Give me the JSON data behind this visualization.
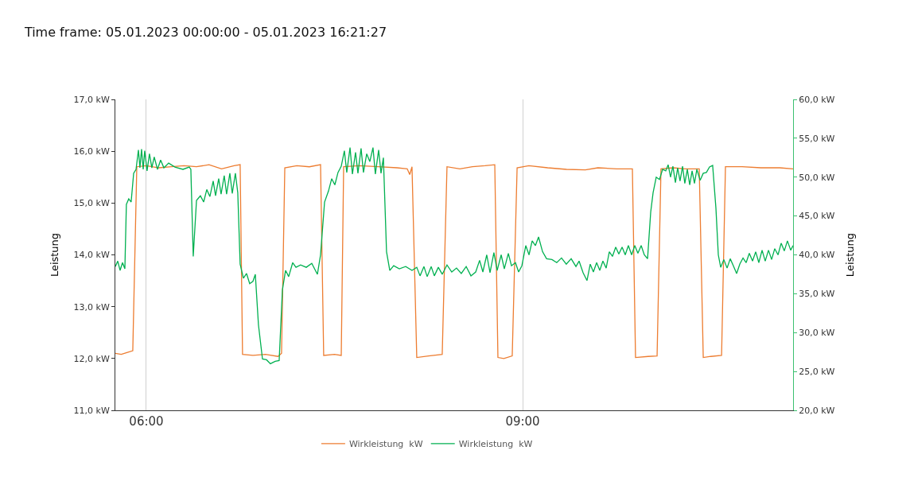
{
  "chart_data": {
    "type": "line",
    "title": "Time frame: 05.01.2023 00:00:00 - 05.01.2023 16:21:27",
    "ylabel": "Leistung",
    "y2label": "Leistung",
    "xlim": [
      5.753,
      11.156
    ],
    "xticks": [
      {
        "value": 6,
        "label": "06:00"
      },
      {
        "value": 9,
        "label": "09:00"
      }
    ],
    "ylim": [
      11,
      17
    ],
    "yticks": [
      {
        "value": 11,
        "label": "11,0 kW"
      },
      {
        "value": 12,
        "label": "12,0 kW"
      },
      {
        "value": 13,
        "label": "13,0 kW"
      },
      {
        "value": 14,
        "label": "14,0 kW"
      },
      {
        "value": 15,
        "label": "15,0 kW"
      },
      {
        "value": 16,
        "label": "16,0 kW"
      },
      {
        "value": 17,
        "label": "17,0 kW"
      }
    ],
    "y2lim": [
      20,
      60
    ],
    "y2ticks": [
      {
        "value": 20,
        "label": "20,0 kW"
      },
      {
        "value": 25,
        "label": "25,0 kW"
      },
      {
        "value": 30,
        "label": "30,0 kW"
      },
      {
        "value": 35,
        "label": "35,0 kW"
      },
      {
        "value": 40,
        "label": "40,0 kW"
      },
      {
        "value": 45,
        "label": "45,0 kW"
      },
      {
        "value": 50,
        "label": "50,0 kW"
      },
      {
        "value": 55,
        "label": "55,0 kW"
      },
      {
        "value": 60,
        "label": "60,0 kW"
      }
    ],
    "grid": "x",
    "legend": "bottom",
    "marker": "none",
    "line_style": "solid",
    "series": [
      {
        "name": "Wirkleistung  kW",
        "color": "#ed7d31",
        "x": [
          5.753,
          5.8,
          5.85,
          5.892,
          5.924,
          6.0,
          6.1,
          6.2,
          6.3,
          6.4,
          6.5,
          6.6,
          6.7,
          6.748,
          6.767,
          6.85,
          6.95,
          7.05,
          7.078,
          7.104,
          7.2,
          7.3,
          7.389,
          7.414,
          7.5,
          7.554,
          7.573,
          7.7,
          7.85,
          8.0,
          8.08,
          8.1,
          8.118,
          8.156,
          8.25,
          8.359,
          8.397,
          8.5,
          8.6,
          8.7,
          8.778,
          8.803,
          8.85,
          8.917,
          8.956,
          9.05,
          9.2,
          9.35,
          9.5,
          9.6,
          9.75,
          9.875,
          9.9,
          10.0,
          10.072,
          10.103,
          10.2,
          10.3,
          10.408,
          10.44,
          10.5,
          10.586,
          10.617,
          10.75,
          10.9,
          11.05,
          11.156
        ],
        "values": [
          12.1,
          12.08,
          12.12,
          12.15,
          15.7,
          15.72,
          15.68,
          15.7,
          15.72,
          15.7,
          15.74,
          15.66,
          15.72,
          15.74,
          12.08,
          12.06,
          12.08,
          12.04,
          12.1,
          15.68,
          15.72,
          15.7,
          15.74,
          12.06,
          12.08,
          12.06,
          15.7,
          15.72,
          15.7,
          15.68,
          15.66,
          15.55,
          15.7,
          12.02,
          12.05,
          12.08,
          15.7,
          15.66,
          15.7,
          15.72,
          15.74,
          12.02,
          12.0,
          12.05,
          15.68,
          15.72,
          15.68,
          15.65,
          15.64,
          15.68,
          15.66,
          15.66,
          12.02,
          12.04,
          12.05,
          15.66,
          15.68,
          15.66,
          15.66,
          12.02,
          12.04,
          12.06,
          15.7,
          15.7,
          15.68,
          15.68,
          15.66
        ]
      },
      {
        "name": "Wirkleistung  kW",
        "color": "#00b050",
        "axis": "y2",
        "x": [
          5.753,
          5.772,
          5.791,
          5.81,
          5.829,
          5.841,
          5.86,
          5.879,
          5.899,
          5.918,
          5.937,
          5.949,
          5.962,
          5.975,
          5.987,
          6.006,
          6.025,
          6.044,
          6.063,
          6.089,
          6.114,
          6.14,
          6.178,
          6.228,
          6.292,
          6.342,
          6.355,
          6.374,
          6.4,
          6.431,
          6.457,
          6.482,
          6.507,
          6.533,
          6.552,
          6.577,
          6.596,
          6.621,
          6.64,
          6.666,
          6.685,
          6.71,
          6.729,
          6.748,
          6.774,
          6.799,
          6.824,
          6.85,
          6.869,
          6.894,
          6.926,
          6.958,
          6.989,
          7.027,
          7.059,
          7.085,
          7.11,
          7.135,
          7.167,
          7.193,
          7.23,
          7.275,
          7.319,
          7.364,
          7.389,
          7.421,
          7.452,
          7.478,
          7.503,
          7.528,
          7.554,
          7.579,
          7.598,
          7.624,
          7.643,
          7.668,
          7.687,
          7.712,
          7.731,
          7.757,
          7.782,
          7.807,
          7.826,
          7.852,
          7.871,
          7.89,
          7.915,
          7.941,
          7.972,
          8.017,
          8.068,
          8.118,
          8.156,
          8.182,
          8.213,
          8.239,
          8.271,
          8.296,
          8.328,
          8.359,
          8.397,
          8.435,
          8.473,
          8.511,
          8.55,
          8.588,
          8.626,
          8.657,
          8.683,
          8.714,
          8.74,
          8.771,
          8.797,
          8.829,
          8.854,
          8.886,
          8.911,
          8.943,
          8.968,
          8.994,
          9.025,
          9.051,
          9.076,
          9.102,
          9.127,
          9.159,
          9.191,
          9.234,
          9.272,
          9.31,
          9.348,
          9.387,
          9.425,
          9.45,
          9.482,
          9.513,
          9.539,
          9.564,
          9.59,
          9.615,
          9.64,
          9.666,
          9.691,
          9.716,
          9.742,
          9.767,
          9.793,
          9.818,
          9.843,
          9.869,
          9.894,
          9.919,
          9.945,
          9.97,
          9.996,
          10.021,
          10.04,
          10.065,
          10.091,
          10.116,
          10.141,
          10.16,
          10.179,
          10.198,
          10.218,
          10.236,
          10.255,
          10.275,
          10.293,
          10.313,
          10.332,
          10.351,
          10.37,
          10.389,
          10.415,
          10.44,
          10.465,
          10.49,
          10.515,
          10.541,
          10.56,
          10.579,
          10.604,
          10.63,
          10.655,
          10.68,
          10.706,
          10.731,
          10.757,
          10.782,
          10.807,
          10.833,
          10.858,
          10.883,
          10.909,
          10.934,
          10.96,
          10.985,
          11.01,
          11.036,
          11.061,
          11.086,
          11.111,
          11.137,
          11.156
        ],
        "values": [
          38.5,
          39.2,
          38.0,
          39.0,
          38.2,
          46.5,
          47.2,
          46.8,
          50.5,
          51.0,
          53.5,
          51.2,
          53.6,
          51.0,
          53.4,
          50.8,
          53.0,
          51.2,
          52.6,
          51.0,
          52.2,
          51.2,
          51.8,
          51.3,
          51.0,
          51.3,
          51.0,
          39.8,
          47.0,
          47.6,
          46.8,
          48.4,
          47.5,
          49.5,
          47.6,
          49.8,
          47.8,
          50.2,
          47.8,
          50.5,
          47.9,
          50.5,
          48.0,
          38.8,
          37.0,
          37.6,
          36.3,
          36.6,
          37.5,
          31.0,
          26.6,
          26.5,
          26.0,
          26.3,
          26.4,
          35.5,
          38.0,
          37.2,
          39.0,
          38.4,
          38.7,
          38.4,
          38.9,
          37.5,
          40.0,
          46.8,
          48.2,
          49.8,
          49.0,
          50.6,
          51.4,
          53.4,
          50.6,
          53.8,
          50.4,
          53.2,
          50.5,
          53.7,
          50.6,
          53.0,
          52.0,
          53.8,
          50.4,
          53.5,
          50.5,
          52.5,
          40.4,
          38.0,
          38.6,
          38.2,
          38.5,
          38.0,
          38.4,
          37.3,
          38.5,
          37.2,
          38.5,
          37.3,
          38.4,
          37.5,
          38.7,
          37.8,
          38.3,
          37.6,
          38.5,
          37.3,
          37.8,
          39.3,
          37.8,
          40.0,
          37.7,
          40.3,
          38.0,
          40.0,
          38.2,
          40.2,
          38.6,
          39.0,
          37.8,
          38.6,
          41.2,
          40.0,
          41.8,
          41.2,
          42.3,
          40.4,
          39.5,
          39.4,
          39.0,
          39.6,
          38.8,
          39.5,
          38.5,
          39.2,
          37.7,
          36.7,
          38.8,
          37.8,
          39.0,
          38.0,
          39.2,
          38.3,
          40.4,
          39.8,
          41.0,
          40.1,
          41.0,
          40.0,
          41.2,
          40.0,
          41.2,
          40.2,
          41.2,
          40.0,
          39.5,
          45.5,
          48.0,
          50.0,
          49.7,
          51.0,
          50.8,
          51.6,
          50.0,
          51.4,
          49.3,
          51.2,
          49.5,
          51.4,
          49.2,
          51.0,
          49.0,
          50.8,
          49.2,
          51.0,
          49.6,
          50.5,
          50.6,
          51.3,
          51.5,
          46.0,
          40.0,
          38.4,
          39.4,
          38.3,
          39.5,
          38.6,
          37.6,
          38.8,
          39.6,
          39.0,
          40.2,
          39.2,
          40.4,
          39.0,
          40.6,
          39.2,
          40.6,
          39.4,
          40.8,
          40.0,
          41.5,
          40.5,
          41.8,
          40.6,
          41.2
        ]
      }
    ]
  }
}
